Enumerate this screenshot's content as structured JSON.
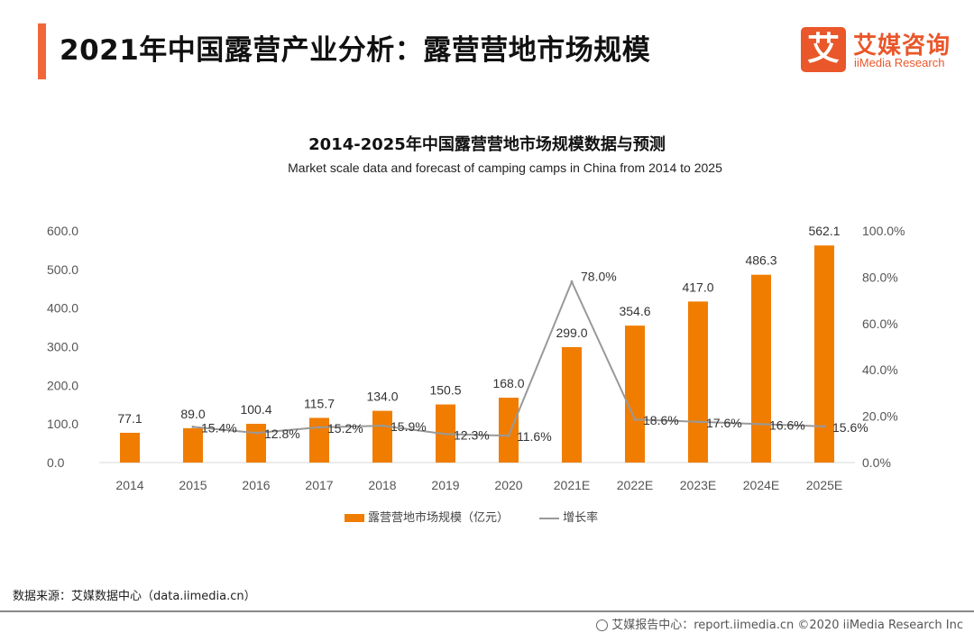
{
  "header": {
    "title": "2021年中国露营产业分析：露营营地市场规模",
    "accent_color": "#f2673a"
  },
  "logo": {
    "mark": "艾",
    "name_cn": "艾媒咨询",
    "name_en": "iiMedia Research",
    "color": "#e9572a"
  },
  "chart_data": {
    "type": "bar",
    "title": "2014-2025年中国露营营地市场规模数据与预测",
    "subtitle": "Market scale data and forecast of camping camps in China from 2014 to 2025",
    "categories": [
      "2014",
      "2015",
      "2016",
      "2017",
      "2018",
      "2019",
      "2020",
      "2021E",
      "2022E",
      "2023E",
      "2024E",
      "2025E"
    ],
    "series": [
      {
        "name": "露营营地市场规模（亿元）",
        "type": "bar",
        "axis": "left",
        "color": "#f07d00",
        "values": [
          77.1,
          89.0,
          100.4,
          115.7,
          134.0,
          150.5,
          168.0,
          299.0,
          354.6,
          417.0,
          486.3,
          562.1
        ],
        "labels": [
          "77.1",
          "89.0",
          "100.4",
          "115.7",
          "134.0",
          "150.5",
          "168.0",
          "299.0",
          "354.6",
          "417.0",
          "486.3",
          "562.1"
        ]
      },
      {
        "name": "增长率",
        "type": "line",
        "axis": "right",
        "color": "#999999",
        "values": [
          null,
          15.4,
          12.8,
          15.2,
          15.9,
          12.3,
          11.6,
          78.0,
          18.6,
          17.6,
          16.6,
          15.6
        ],
        "labels": [
          null,
          "15.4%",
          "12.8%",
          "15.2%",
          "15.9%",
          "12.3%",
          "11.6%",
          "78.0%",
          "18.6%",
          "17.6%",
          "16.6%",
          "15.6%"
        ]
      }
    ],
    "y_left": {
      "ylim": [
        0,
        600
      ],
      "ticks": [
        "0.0",
        "100.0",
        "200.0",
        "300.0",
        "400.0",
        "500.0",
        "600.0"
      ]
    },
    "y_right": {
      "ylim": [
        0,
        100
      ],
      "ticks": [
        "0.0%",
        "20.0%",
        "40.0%",
        "60.0%",
        "80.0%",
        "100.0%"
      ]
    },
    "grid": false,
    "legend_position": "bottom-center",
    "xlabel": "",
    "ylabel": ""
  },
  "legend": {
    "bar_label": "露营营地市场规模（亿元）",
    "line_label": "增长率"
  },
  "source": "数据来源：艾媒数据中心（data.iimedia.cn）",
  "footer": "艾媒报告中心：report.iimedia.cn   ©2020  iiMedia Research  Inc"
}
